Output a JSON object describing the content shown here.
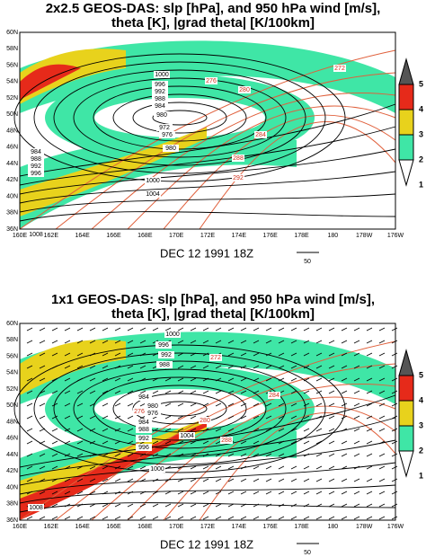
{
  "panels": [
    {
      "title_lines": [
        "2x2.5  GEOS-DAS: slp [hPa], and 950 hPa wind [m/s],",
        "theta [K], |grad theta| [K/100km]"
      ],
      "lat_labels": [
        "60N",
        "58N",
        "56N",
        "54N",
        "52N",
        "50N",
        "48N",
        "46N",
        "44N",
        "42N",
        "40N",
        "38N",
        "36N"
      ],
      "lon_labels": [
        "160E",
        "162E",
        "164E",
        "166E",
        "168E",
        "170E",
        "172E",
        "174E",
        "176E",
        "178E",
        "180",
        "178W",
        "176W"
      ],
      "date": "DEC 12 1991 18Z",
      "scale_label": "50",
      "colorbar_labels": [
        5,
        4,
        3,
        2,
        1
      ],
      "slp_labels": [
        "1000",
        "996",
        "992",
        "988",
        "984",
        "980",
        "972",
        "976",
        "980",
        "984",
        "988",
        "992",
        "996",
        "1000",
        "1004",
        "1008"
      ],
      "theta_labels": [
        "272",
        "276",
        "280",
        "284",
        "288",
        "292"
      ]
    },
    {
      "title_lines": [
        "1x1    GEOS-DAS: slp [hPa], and 950 hPa wind [m/s],",
        "theta [K], |grad theta| [K/100km]"
      ],
      "lat_labels": [
        "60N",
        "58N",
        "56N",
        "54N",
        "52N",
        "50N",
        "48N",
        "46N",
        "44N",
        "42N",
        "40N",
        "38N",
        "36N"
      ],
      "lon_labels": [
        "160E",
        "162E",
        "164E",
        "166E",
        "168E",
        "170E",
        "172E",
        "174E",
        "176E",
        "178E",
        "180",
        "178W",
        "176W"
      ],
      "date": "DEC 12 1991 18Z",
      "scale_label": "50",
      "colorbar_labels": [
        5,
        4,
        3,
        2,
        1
      ],
      "slp_labels": [
        "1000",
        "996",
        "992",
        "988",
        "984",
        "980",
        "976",
        "984",
        "988",
        "992",
        "996",
        "1000",
        "1004",
        "1008"
      ],
      "theta_labels": [
        "272",
        "276",
        "280",
        "284",
        "288"
      ]
    }
  ]
}
